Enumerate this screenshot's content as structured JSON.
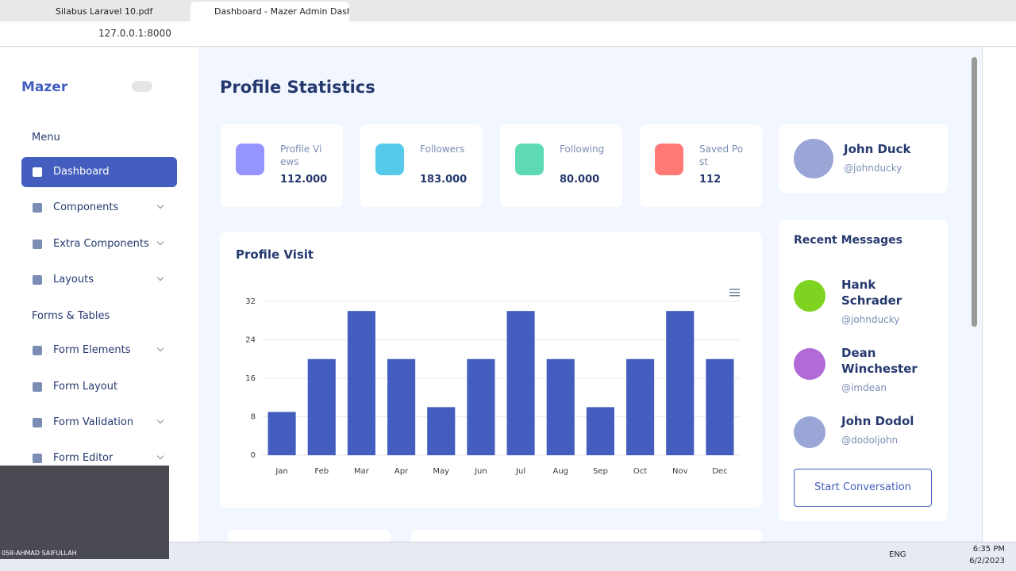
{
  "browser": {
    "tabs": [
      "Silabus Laravel 10.pdf",
      "Dashboard - Mazer Admin Dashb"
    ],
    "url": "127.0.0.1:8000"
  },
  "sidebar": {
    "brand": "Mazer",
    "sections": [
      {
        "heading": "Menu",
        "items": [
          {
            "label": "Dashboard",
            "active": true
          },
          {
            "label": "Components",
            "submenu": true
          },
          {
            "label": "Extra Components",
            "submenu": true
          },
          {
            "label": "Layouts",
            "submenu": true
          }
        ]
      },
      {
        "heading": "Forms & Tables",
        "items": [
          {
            "label": "Form Elements",
            "submenu": true
          },
          {
            "label": "Form Layout"
          },
          {
            "label": "Form Validation",
            "submenu": true
          },
          {
            "label": "Form Editor",
            "submenu": true
          }
        ]
      }
    ]
  },
  "main": {
    "title": "Profile Statistics",
    "stats": [
      {
        "label": "Profile Views",
        "value": "112.000",
        "color": "#9694ff"
      },
      {
        "label": "Followers",
        "value": "183.000",
        "color": "#57caeb"
      },
      {
        "label": "Following",
        "value": "80.000",
        "color": "#5ddab4"
      },
      {
        "label": "Saved Post",
        "value": "112",
        "color": "#ff7976"
      }
    ],
    "profile": {
      "name": "John Duck",
      "handle": "@johnducky"
    },
    "chart_data": {
      "type": "bar",
      "title": "Profile Visit",
      "categories": [
        "Jan",
        "Feb",
        "Mar",
        "Apr",
        "May",
        "Jun",
        "Jul",
        "Aug",
        "Sep",
        "Oct",
        "Nov",
        "Dec"
      ],
      "values": [
        9,
        20,
        30,
        20,
        10,
        20,
        30,
        20,
        10,
        20,
        30,
        20
      ],
      "color": "#435ebe",
      "ylim": [
        0,
        32
      ],
      "yticks": [
        0,
        8,
        16,
        24,
        32
      ],
      "grid": true
    },
    "messages": {
      "title": "Recent Messages",
      "items": [
        {
          "name": "Hank Schrader",
          "handle": "@johnducky",
          "color": "#7ed321"
        },
        {
          "name": "Dean Winchester",
          "handle": "@imdean",
          "color": "#b26bd6"
        },
        {
          "name": "John Dodol",
          "handle": "@dodoljohn",
          "color": "#9aa6d6"
        }
      ],
      "button": "Start Conversation"
    }
  },
  "taskbar": {
    "webcam": "058-AHMAD SAIFULLAH",
    "lang": "ENG",
    "time": "6:35 PM",
    "date": "6/2/2023"
  }
}
